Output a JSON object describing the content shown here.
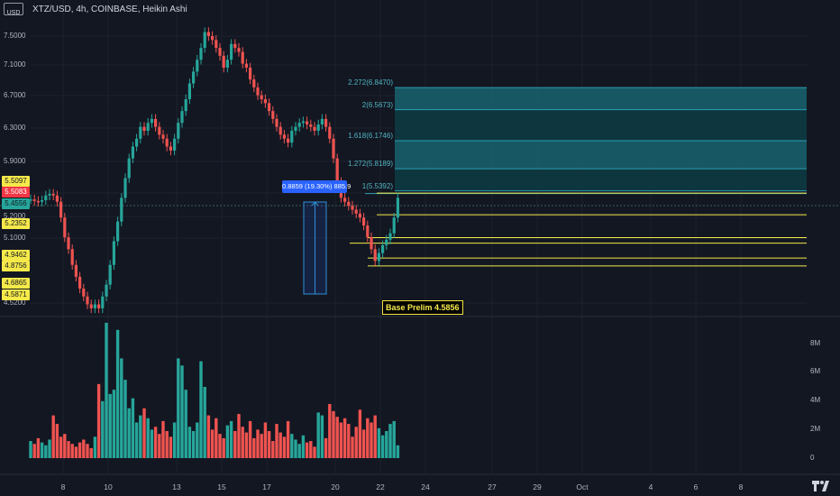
{
  "header": {
    "symbol_badge_line1": "",
    "symbol_badge_line2": "USD",
    "title": "XTZ/USD, 4h, COINBASE, Heikin Ashi"
  },
  "price_badges": [
    {
      "text": "5.5097",
      "bg": "#f5e94a",
      "fg": "#131722",
      "price": 5.5097
    },
    {
      "text": "5.5083",
      "bg": "#f23645",
      "fg": "#ffffff",
      "price": 5.5083
    },
    {
      "text": "5.4556",
      "bg": "#26a69a",
      "fg": "#131722",
      "price": 5.4556
    },
    {
      "text": "5.2352",
      "bg": "#f5e94a",
      "fg": "#131722",
      "price": 5.2352
    },
    {
      "text": "4.9462",
      "bg": "#f5e94a",
      "fg": "#131722",
      "price": 4.9462
    },
    {
      "text": "4.8756",
      "bg": "#f5e94a",
      "fg": "#131722",
      "price": 4.8756
    },
    {
      "text": "4.6865",
      "bg": "#f5e94a",
      "fg": "#131722",
      "price": 4.6865
    },
    {
      "text": "4.5871",
      "bg": "#f5e94a",
      "fg": "#131722",
      "price": 4.5871
    }
  ],
  "fib_levels": [
    {
      "label": "2.272(6.8470)",
      "price": 6.847
    },
    {
      "label": "2(6.5673)",
      "price": 6.5673
    },
    {
      "label": "1.618(6.1746)",
      "price": 6.1746
    },
    {
      "label": "1.272(5.8189)",
      "price": 5.8189
    },
    {
      "label": "1(5.5392)",
      "price": 5.5392
    }
  ],
  "measure_label": "0.8859 (19.30%) 885.9",
  "base_label": "Base Prelim 4.5856",
  "colors": {
    "up": "#26a69a",
    "down": "#ef5350",
    "fib": "#2a9fb0",
    "level": "#f5e94a",
    "measure": "#2962ff"
  },
  "chart_data": {
    "type": "candlestick",
    "title": "XTZ/USD, 4h, COINBASE, Heikin Ashi",
    "price_axis": {
      "ticks": [
        "7.5000",
        "7.1000",
        "6.7000",
        "6.3000",
        "5.9000",
        "5.5000",
        "5.2000",
        "5.1000",
        "4.5200"
      ],
      "ylim": [
        4.45,
        7.8
      ]
    },
    "volume_axis": {
      "ticks": [
        "8M",
        "6M",
        "4M",
        "2M",
        "0"
      ],
      "ylim": [
        0,
        9.5
      ]
    },
    "x_ticks": [
      "8",
      "10",
      "13",
      "15",
      "17",
      "20",
      "22",
      "24",
      "27",
      "29",
      "Oct",
      "4",
      "6",
      "8"
    ],
    "horizontal_levels": [
      5.5097,
      5.2352,
      4.9462,
      4.8756,
      4.6865,
      4.5871
    ],
    "series": [
      {
        "name": "price",
        "values": [
          5.43,
          5.41,
          5.4,
          5.42,
          5.48,
          5.5,
          5.48,
          5.4,
          5.2,
          4.95,
          4.8,
          4.6,
          4.45,
          4.3,
          4.2,
          4.1,
          4.05,
          4.1,
          4.05,
          4.2,
          4.35,
          4.6,
          4.9,
          5.15,
          5.45,
          5.7,
          5.95,
          6.1,
          6.2,
          6.35,
          6.3,
          6.4,
          6.45,
          6.35,
          6.25,
          6.2,
          6.1,
          6.05,
          6.2,
          6.4,
          6.55,
          6.7,
          6.9,
          7.05,
          7.2,
          7.35,
          7.55,
          7.5,
          7.45,
          7.35,
          7.25,
          7.1,
          7.2,
          7.4,
          7.35,
          7.3,
          7.15,
          7.1,
          6.95,
          6.85,
          6.75,
          6.7,
          6.65,
          6.55,
          6.45,
          6.35,
          6.25,
          6.2,
          6.15,
          6.3,
          6.35,
          6.4,
          6.42,
          6.38,
          6.35,
          6.3,
          6.38,
          6.45,
          6.35,
          6.2,
          5.95,
          5.65,
          5.45,
          5.4,
          5.35,
          5.3,
          5.25,
          5.2,
          5.1,
          4.95,
          4.8,
          4.65,
          4.75,
          4.85,
          4.92,
          5.0,
          5.2,
          5.45
        ]
      },
      {
        "name": "volume",
        "values": [
          1.2,
          1.0,
          1.4,
          1.1,
          0.9,
          1.3,
          3.0,
          2.4,
          1.5,
          1.7,
          1.2,
          1.0,
          0.8,
          1.1,
          1.3,
          1.0,
          0.7,
          1.5,
          5.2,
          4.0,
          9.5,
          4.5,
          4.8,
          9.0,
          7.0,
          5.5,
          3.5,
          4.2,
          2.5,
          3.0,
          3.5,
          2.8,
          2.0,
          2.2,
          1.7,
          2.6,
          1.9,
          1.5,
          2.5,
          7.0,
          6.5,
          4.8,
          2.2,
          1.9,
          2.5,
          6.8,
          5.0,
          3.0,
          2.0,
          2.8,
          1.7,
          1.4,
          2.3,
          2.6,
          1.9,
          3.1,
          2.2,
          1.8,
          2.6,
          1.4,
          2.0,
          1.7,
          2.5,
          1.9,
          1.2,
          2.4,
          1.8,
          1.5,
          2.6,
          1.7,
          1.3,
          1.0,
          1.6,
          1.1,
          1.2,
          0.8,
          3.2,
          3.0,
          1.4,
          3.8,
          3.3,
          2.9,
          2.5,
          2.8,
          2.4,
          1.5,
          2.2,
          3.4,
          2.0,
          2.8,
          2.5,
          3.0,
          2.1,
          1.6,
          1.9,
          2.4,
          2.6,
          0.9
        ]
      }
    ]
  }
}
